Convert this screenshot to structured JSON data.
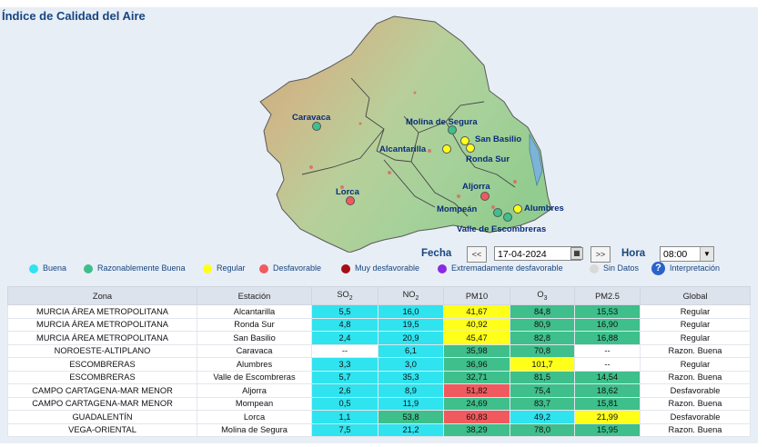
{
  "title": "Índice de Calidad del Aire",
  "map": {
    "stations": [
      {
        "label": "Caravaca",
        "status": "Razonablemente Buena"
      },
      {
        "label": "Molina de Segura",
        "status": "Razonablemente Buena"
      },
      {
        "label": "San Basilio",
        "status": "Regular"
      },
      {
        "label": "Alcantarilla",
        "status": "Regular"
      },
      {
        "label": "Ronda Sur",
        "status": "Regular"
      },
      {
        "label": "Lorca",
        "status": "Desfavorable"
      },
      {
        "label": "Aljorra",
        "status": "Desfavorable"
      },
      {
        "label": "Alumbres",
        "status": "Regular"
      },
      {
        "label": "Mompeán",
        "status": "Razonablemente Buena"
      },
      {
        "label": "Valle de Escombreras",
        "status": "Razonablemente Buena"
      }
    ]
  },
  "controls": {
    "date_label": "Fecha",
    "prev_label": "<<",
    "date_value": "17-04-2024",
    "calendar_icon": "calendar-icon",
    "next_label": ">>",
    "time_label": "Hora",
    "time_value": "08:00",
    "dropdown_icon": "chevron-down-icon"
  },
  "legend": {
    "items": [
      {
        "label": "Buena",
        "color": "#2fe3ef"
      },
      {
        "label": "Razonablemente Buena",
        "color": "#3ebf8b"
      },
      {
        "label": "Regular",
        "color": "#ffff1a"
      },
      {
        "label": "Desfavorable",
        "color": "#f05a5e"
      },
      {
        "label": "Muy desfavorable",
        "color": "#a50f15"
      },
      {
        "label": "Extremadamente desfavorable",
        "color": "#8a2be2"
      },
      {
        "label": "Sin Datos",
        "color": "#d9d9d9"
      }
    ],
    "help_label": "Interpretación",
    "help_glyph": "?"
  },
  "table": {
    "headers": {
      "zona": "Zona",
      "estacion": "Estación",
      "so2_base": "SO",
      "so2_sub": "2",
      "no2_base": "NO",
      "no2_sub": "2",
      "pm10": "PM10",
      "o3_base": "O",
      "o3_sub": "3",
      "pm25": "PM2.5",
      "global": "Global"
    },
    "rows": [
      {
        "zona": "MURCIA ÁREA METROPOLITANA",
        "estacion": "Alcantarilla",
        "so2": "5,5",
        "no2": "16,0",
        "pm10": "41,67",
        "o3": "84,8",
        "pm25": "15,53",
        "global": "Regular"
      },
      {
        "zona": "MURCIA ÁREA METROPOLITANA",
        "estacion": "Ronda Sur",
        "so2": "4,8",
        "no2": "19,5",
        "pm10": "40,92",
        "o3": "80,9",
        "pm25": "16,90",
        "global": "Regular"
      },
      {
        "zona": "MURCIA ÁREA METROPOLITANA",
        "estacion": "San Basilio",
        "so2": "2,4",
        "no2": "20,9",
        "pm10": "45,47",
        "o3": "82,8",
        "pm25": "16,88",
        "global": "Regular"
      },
      {
        "zona": "NOROESTE-ALTIPLANO",
        "estacion": "Caravaca",
        "so2": "--",
        "no2": "6,1",
        "pm10": "35,98",
        "o3": "70,8",
        "pm25": "--",
        "global": "Razon. Buena"
      },
      {
        "zona": "ESCOMBRERAS",
        "estacion": "Alumbres",
        "so2": "3,3",
        "no2": "3,0",
        "pm10": "36,96",
        "o3": "101,7",
        "pm25": "--",
        "global": "Regular"
      },
      {
        "zona": "ESCOMBRERAS",
        "estacion": "Valle de Escombreras",
        "so2": "5,7",
        "no2": "35,3",
        "pm10": "32,71",
        "o3": "81,5",
        "pm25": "14,54",
        "global": "Razon. Buena"
      },
      {
        "zona": "CAMPO CARTAGENA-MAR MENOR",
        "estacion": "Aljorra",
        "so2": "2,6",
        "no2": "8,9",
        "pm10": "51,82",
        "o3": "75,4",
        "pm25": "18,62",
        "global": "Desfavorable"
      },
      {
        "zona": "CAMPO CARTAGENA-MAR MENOR",
        "estacion": "Mompean",
        "so2": "0,5",
        "no2": "11,9",
        "pm10": "24,69",
        "o3": "83,7",
        "pm25": "15,81",
        "global": "Razon. Buena"
      },
      {
        "zona": "GUADALENTÍN",
        "estacion": "Lorca",
        "so2": "1,1",
        "no2": "53,8",
        "pm10": "60,83",
        "o3": "49,2",
        "pm25": "21,99",
        "global": "Desfavorable"
      },
      {
        "zona": "VEGA-ORIENTAL",
        "estacion": "Molina de Segura",
        "so2": "7,5",
        "no2": "21,2",
        "pm10": "38,29",
        "o3": "78,0",
        "pm25": "15,95",
        "global": "Razon. Buena"
      }
    ]
  }
}
